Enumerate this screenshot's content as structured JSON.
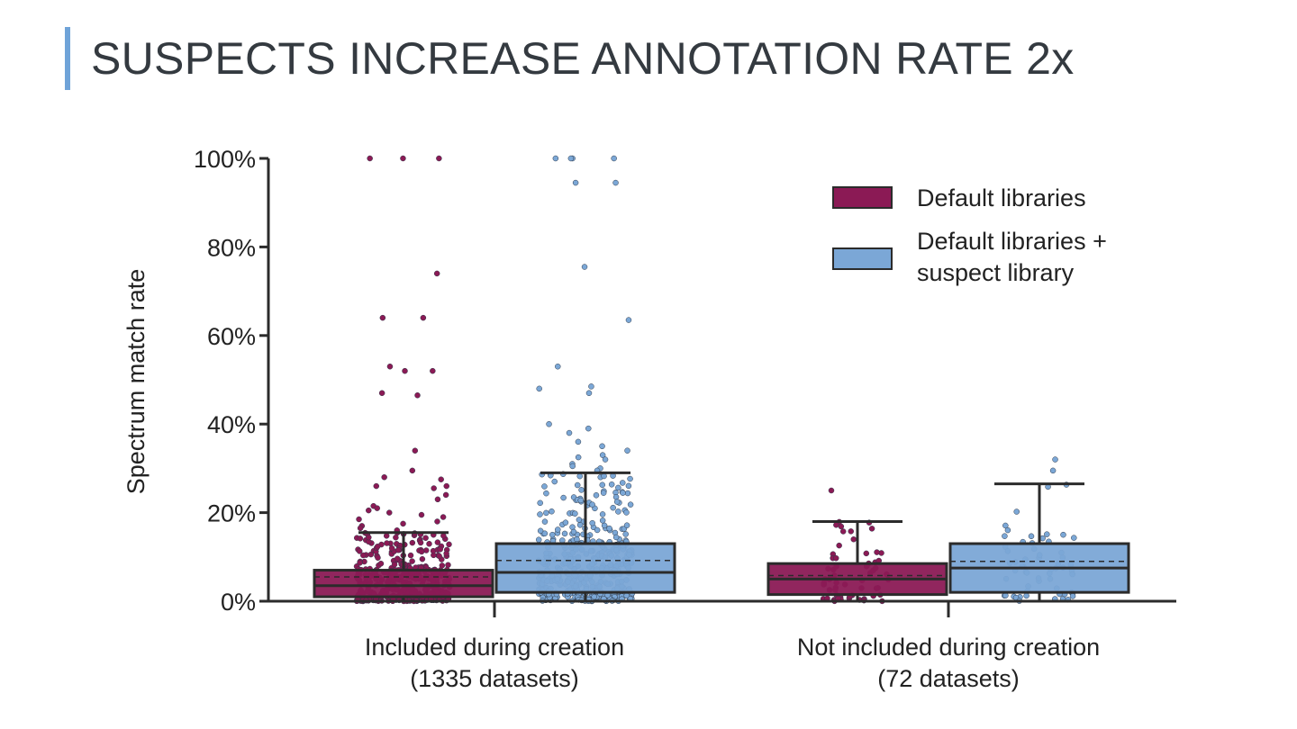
{
  "slide": {
    "title": "SUSPECTS INCREASE ANNOTATION RATE 2x",
    "accent_color": "#6fa3d8"
  },
  "chart_data": {
    "type": "box",
    "ylabel": "Spectrum match rate",
    "xlabel": "",
    "ylim": [
      0,
      100
    ],
    "y_ticks": [
      "0%",
      "20%",
      "40%",
      "60%",
      "80%",
      "100%"
    ],
    "y_tick_values": [
      0,
      20,
      40,
      60,
      80,
      100
    ],
    "grid": false,
    "legend_position": "top-right",
    "categories": [
      {
        "line1": "Included during creation",
        "line2": "(1335 datasets)"
      },
      {
        "line1": "Not included during creation",
        "line2": "(72 datasets)"
      }
    ],
    "series": [
      {
        "name": "Default libraries",
        "color": "#8b1a55",
        "boxes": [
          {
            "q1": 1,
            "median": 3.5,
            "mean": 5.5,
            "q3": 7,
            "whisker_low": 0,
            "whisker_high": 15.5
          },
          {
            "q1": 1.5,
            "median": 5,
            "mean": 5.8,
            "q3": 8.5,
            "whisker_low": 0,
            "whisker_high": 18
          }
        ],
        "outliers": [
          [
            100,
            100,
            100,
            74,
            64,
            64,
            53,
            52,
            52,
            47,
            46.5,
            34,
            29.5,
            28,
            27.5,
            26,
            26,
            25.5,
            24,
            23,
            21.5,
            21,
            20.5,
            20,
            19.5,
            19,
            18.5,
            18,
            17.5,
            17,
            16.5,
            16
          ],
          [
            25
          ]
        ]
      },
      {
        "name": "Default libraries + suspect library",
        "color": "#7ba7d6",
        "boxes": [
          {
            "q1": 2,
            "median": 6.5,
            "mean": 9.2,
            "q3": 13,
            "whisker_low": 0,
            "whisker_high": 29
          },
          {
            "q1": 2,
            "median": 7.5,
            "mean": 9,
            "q3": 13,
            "whisker_low": 0,
            "whisker_high": 26.5
          }
        ],
        "outliers": [
          [
            100,
            100,
            100,
            100,
            94.5,
            94.5,
            75.5,
            63.5,
            53,
            48.5,
            48,
            47,
            40,
            39,
            38,
            36,
            35,
            34,
            33,
            32.5,
            32,
            31,
            30.5,
            30,
            29.5
          ],
          [
            32,
            29.5
          ]
        ]
      }
    ]
  }
}
